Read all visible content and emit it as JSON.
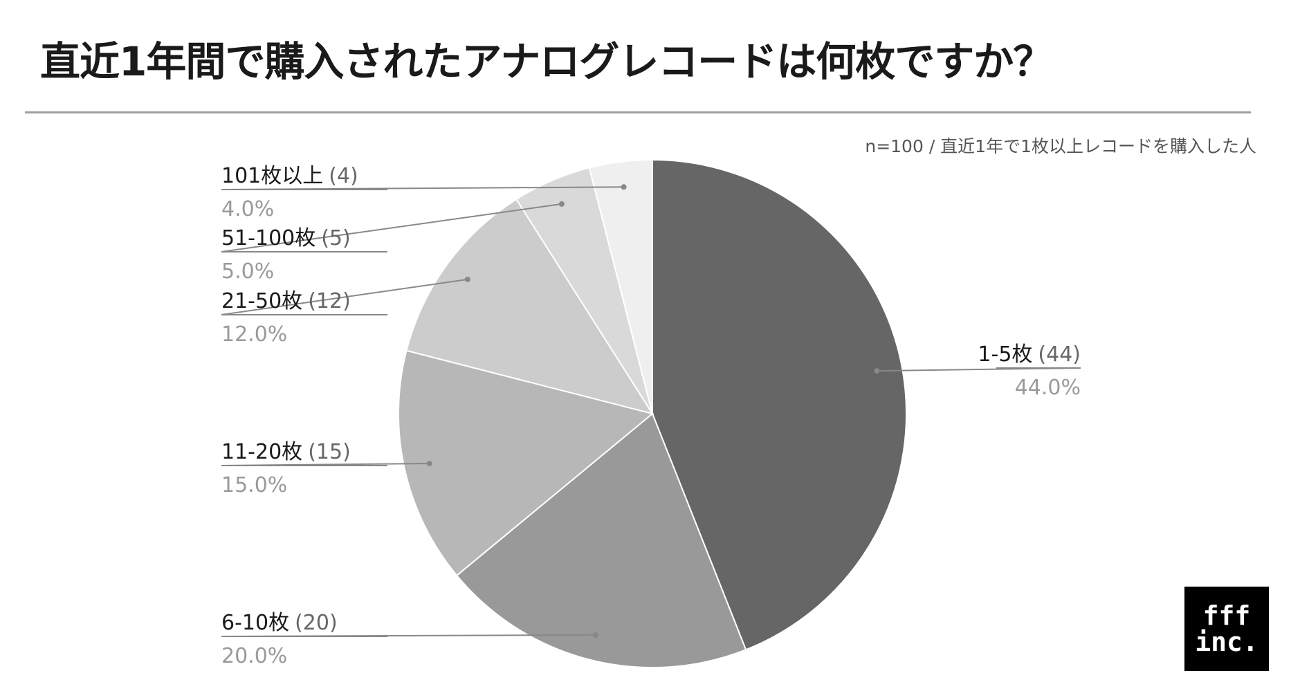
{
  "title": "直近1年間で購入されたアナログレコードは何枚ですか？",
  "note": "n=100 / 直近1年で1枚以上レコードを購入した人",
  "logo": {
    "line1": "fff",
    "line2": "inc."
  },
  "chart_data": {
    "type": "pie",
    "categories": [
      "1-5枚",
      "6-10枚",
      "11-20枚",
      "21-50枚",
      "51-100枚",
      "101枚以上"
    ],
    "values": [
      44,
      20,
      15,
      12,
      5,
      4
    ],
    "value_labels": [
      "(44)",
      "(20)",
      "(15)",
      "(12)",
      "(5)",
      "(4)"
    ],
    "percent_labels": [
      "44.0%",
      "20.0%",
      "15.0%",
      "12.0%",
      "5.0%",
      "4.0%"
    ],
    "colors": [
      "#666666",
      "#999999",
      "#b7b7b7",
      "#cccccc",
      "#d9d9d9",
      "#efefef"
    ],
    "start": "12 o'clock, clockwise"
  }
}
